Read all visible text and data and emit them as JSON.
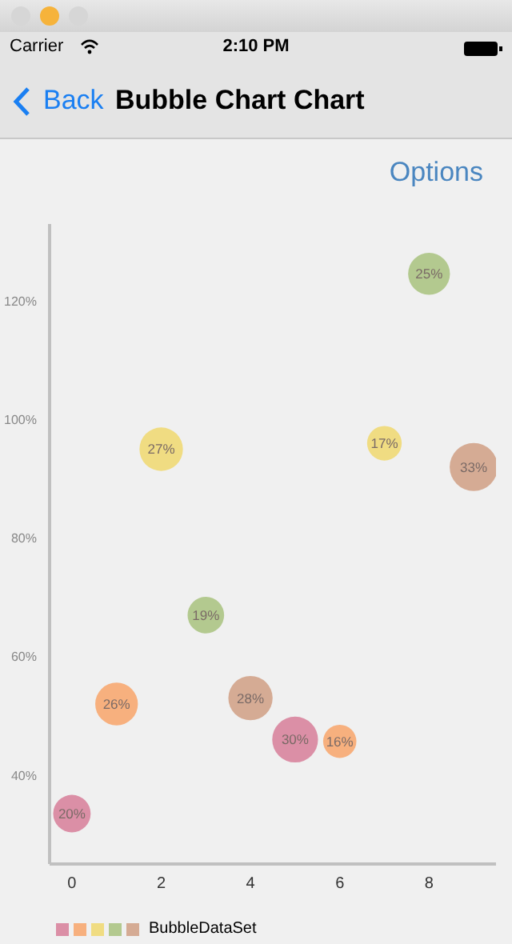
{
  "chart_data": {
    "type": "bubble",
    "title": "Bubble Chart Chart",
    "annotations": [
      "Carrier",
      "2:10 PM",
      "Back",
      "Options",
      {
        "text": "20%",
        "x": 0,
        "y": 33.5
      },
      {
        "text": "26%",
        "x": 1,
        "y": 52
      },
      {
        "text": "27%",
        "x": 2,
        "y": 95
      },
      {
        "text": "19%",
        "x": 3,
        "y": 67
      },
      {
        "text": "28%",
        "x": 4,
        "y": 53
      },
      {
        "text": "30%",
        "x": 5,
        "y": 46
      },
      {
        "text": "16%",
        "x": 6,
        "y": 45.7
      },
      {
        "text": "17%",
        "x": 7,
        "y": 96
      },
      {
        "text": "25%",
        "x": 8,
        "y": 124.6
      },
      {
        "text": "33%",
        "x": 9,
        "y": 92
      }
    ],
    "x": [
      0,
      1,
      2,
      3,
      4,
      5,
      6,
      7,
      8,
      9
    ],
    "series": [
      {
        "name": "BubbleDataSet",
        "values": [
          33.5,
          52,
          95,
          67,
          53,
          46,
          45.7,
          96,
          124.6,
          92
        ],
        "sizes": [
          0.61,
          0.79,
          0.82,
          0.58,
          0.85,
          0.91,
          0.48,
          0.52,
          0.76,
          1
        ],
        "colors": [
          "#db8fa6",
          "#f7b07e",
          "#f0dc82",
          "#b3c98f",
          "#d5ab94",
          "#db8fa6",
          "#f7b07e",
          "#f0dc82",
          "#b3c98f",
          "#d5ab94"
        ]
      }
    ],
    "xlim": [
      -0.5,
      9.5
    ],
    "xticks": [
      0,
      2,
      4,
      6,
      8
    ],
    "ylim": [
      25,
      133
    ],
    "yticks": [
      {
        "value": 40,
        "label": "40%"
      },
      {
        "value": 60,
        "label": "60%"
      },
      {
        "value": 80,
        "label": "80%"
      },
      {
        "value": 100,
        "label": "100%"
      },
      {
        "value": 120,
        "label": "120%"
      }
    ],
    "legend": "bottom left"
  }
}
